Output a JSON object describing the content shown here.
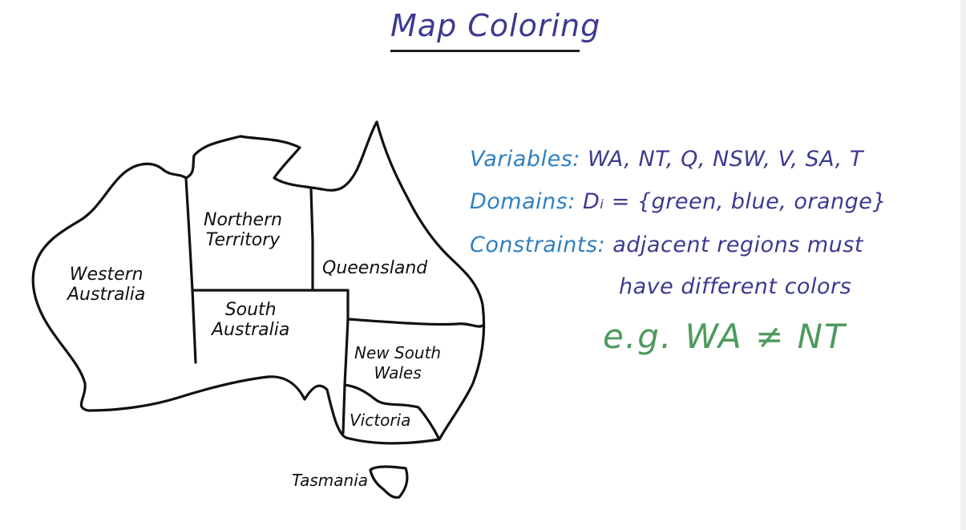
{
  "title": "Map Coloring",
  "map": {
    "regions": {
      "western_australia": [
        "Western",
        "Australia"
      ],
      "northern_territory": [
        "Northern",
        "Territory"
      ],
      "queensland": "Queensland",
      "south_australia": [
        "South",
        "Australia"
      ],
      "new_south_wales": [
        "New South",
        "Wales"
      ],
      "victoria": "Victoria",
      "tasmania": "Tasmania"
    }
  },
  "definitions": {
    "variables": {
      "term": "Variables:",
      "value": "WA, NT, Q, NSW, V, SA, T"
    },
    "domains": {
      "term": "Domains:",
      "value": "Dᵢ = {green, blue, orange}"
    },
    "constraints": {
      "term": "Constraints:",
      "value_line1": "adjacent regions must",
      "value_line2": "have different colors"
    },
    "example": "e.g.  WA ≠ NT"
  },
  "colors": {
    "title": "#3c3a8f",
    "term": "#2f7fc0",
    "value": "#3c3a8f",
    "example": "#4f9a5e",
    "outline": "#111111"
  }
}
